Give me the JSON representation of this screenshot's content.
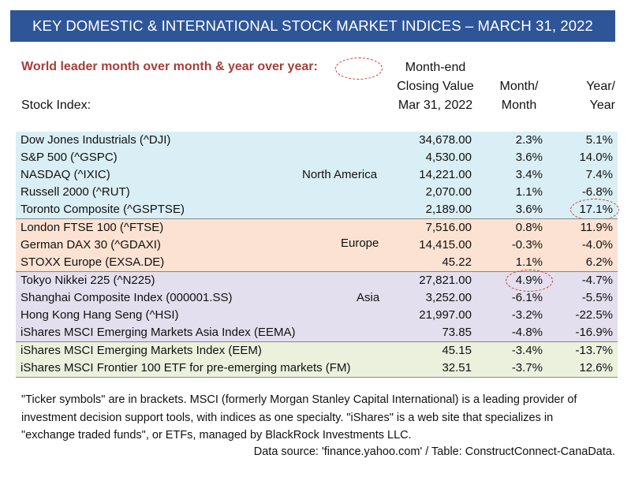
{
  "title": "KEY DOMESTIC & INTERNATIONAL STOCK MARKET INDICES – MARCH 31, 2022",
  "leader_note": "World leader month over month & year over year:",
  "headers": {
    "index": "Stock Index:",
    "close_line1": "Month-end",
    "close_line2": "Closing Value",
    "close_line3": "Mar 31, 2022",
    "mom_line1": "Month/",
    "mom_line2": "Month",
    "yoy_line1": "Year/",
    "yoy_line2": "Year"
  },
  "groups": [
    {
      "region": "North America",
      "rows": [
        {
          "name": "Dow Jones Industrials (^DJI)",
          "close": "34,678.00",
          "mom": "2.3%",
          "yoy": "5.1%"
        },
        {
          "name": "S&P 500 (^GSPC)",
          "close": "4,530.00",
          "mom": "3.6%",
          "yoy": "14.0%"
        },
        {
          "name": "NASDAQ (^IXIC)",
          "close": "14,221.00",
          "mom": "3.4%",
          "yoy": "7.4%"
        },
        {
          "name": "Russell  2000 (^RUT)",
          "close": "2,070.00",
          "mom": "1.1%",
          "yoy": "-6.8%"
        },
        {
          "name": "Toronto Composite (^GSPTSE)",
          "close": "2,189.00",
          "mom": "3.6%",
          "yoy": "17.1%"
        }
      ]
    },
    {
      "region": "Europe",
      "rows": [
        {
          "name": "London FTSE 100 (^FTSE)",
          "close": "7,516.00",
          "mom": "0.8%",
          "yoy": "11.9%"
        },
        {
          "name": "German DAX 30 (^GDAXI)",
          "close": "14,415.00",
          "mom": "-0.3%",
          "yoy": "-4.0%"
        },
        {
          "name": "STOXX Europe (EXSA.DE)",
          "close": "45.22",
          "mom": "1.1%",
          "yoy": "6.2%"
        }
      ]
    },
    {
      "region": "Asia",
      "rows": [
        {
          "name": "Tokyo Nikkei 225 (^N225)",
          "close": "27,821.00",
          "mom": "4.9%",
          "yoy": "-4.7%"
        },
        {
          "name": "Shanghai Composite Index (000001.SS)",
          "close": "3,252.00",
          "mom": "-6.1%",
          "yoy": "-5.5%"
        },
        {
          "name": "Hong Kong Hang Seng (^HSI)",
          "close": "21,997.00",
          "mom": "-3.2%",
          "yoy": "-22.5%"
        },
        {
          "name": "iShares MSCI Emerging Markets Asia Index (EEMA)",
          "close": "73.85",
          "mom": "-4.8%",
          "yoy": "-16.9%"
        }
      ]
    },
    {
      "region": "",
      "rows": [
        {
          "name": "iShares MSCI Emerging Markets Index (EEM)",
          "close": "45.15",
          "mom": "-3.4%",
          "yoy": "-13.7%"
        },
        {
          "name": "iShares MSCI Frontier 100 ETF for pre-emerging markets (FM)",
          "close": "32.51",
          "mom": "-3.7%",
          "yoy": "12.6%"
        }
      ]
    }
  ],
  "footnote": "\"Ticker symbols\" are in brackets. MSCI (formerly Morgan Stanley Capital International) is a leading provider of investment decision support tools, with indices as one specialty. \"iShares\" is a web site that specializes in \"exchange traded funds\", or ETFs, managed by BlackRock Investments LLC.",
  "source": "Data source: 'finance.yahoo.com' / Table: ConstructConnect-CanaData.",
  "colors": {
    "title_bar": "#2e5597",
    "leader_text": "#a53f3a",
    "north_america_band": "#d9eff5",
    "europe_band": "#fbe2d2",
    "asia_band": "#e3dfee",
    "emerging_band": "#ebf1dd"
  }
}
